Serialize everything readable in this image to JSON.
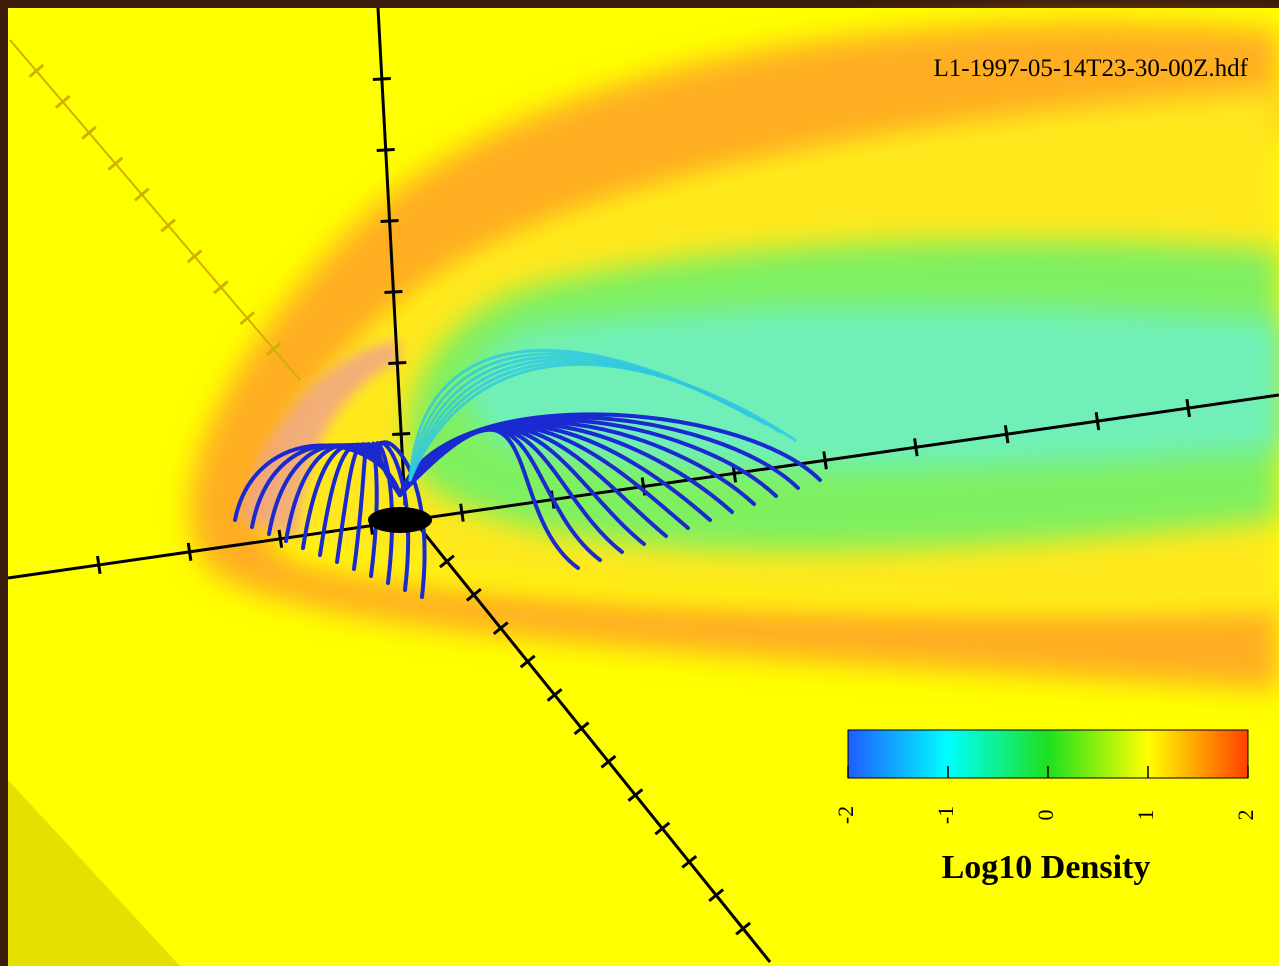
{
  "filename": "L1-1997-05-14T23-30-00Z.hdf",
  "colorbar": {
    "label": "Log10 Density",
    "range": [
      -2,
      2
    ],
    "ticks": [
      -2,
      -1,
      0,
      1,
      2
    ]
  }
}
